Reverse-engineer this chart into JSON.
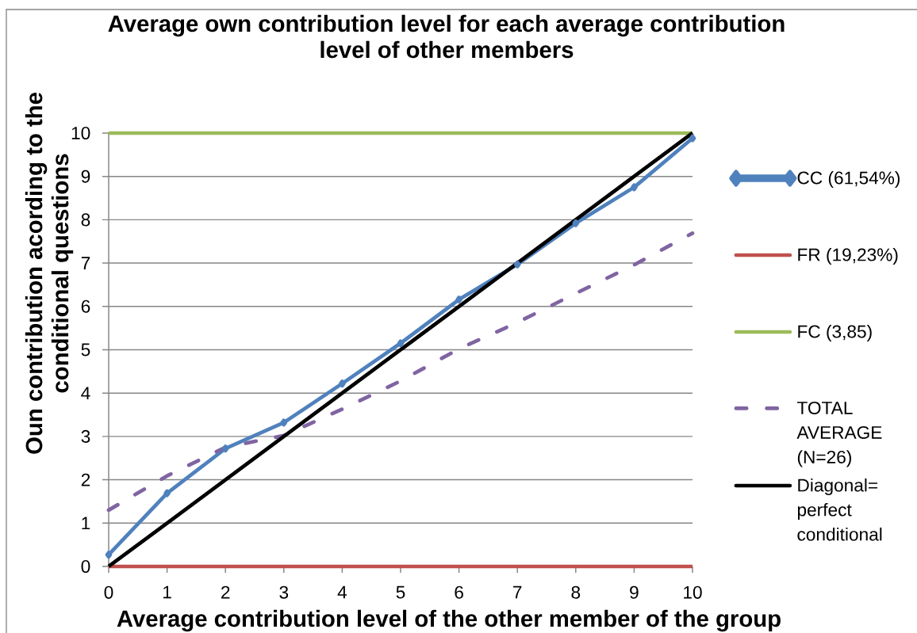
{
  "chart_data": {
    "type": "line",
    "title": "Average own contribution level for each average contribution level of other members",
    "xlabel": "Average contribution level of the other member of the group",
    "ylabel": "Oun contribution acording to the conditional questions",
    "x": [
      0,
      1,
      2,
      3,
      4,
      5,
      6,
      7,
      8,
      9,
      10
    ],
    "xlim": [
      0,
      10
    ],
    "ylim": [
      0,
      10
    ],
    "xticks": [
      0,
      1,
      2,
      3,
      4,
      5,
      6,
      7,
      8,
      9,
      10
    ],
    "yticks": [
      0,
      1,
      2,
      3,
      4,
      5,
      6,
      7,
      8,
      9,
      10
    ],
    "grid": "y",
    "legend": "right",
    "line_style": "solid",
    "series": [
      {
        "name": "CC (61,54%)",
        "color": "#4f81bd",
        "marker": "diamond",
        "values": [
          0.27,
          1.69,
          2.72,
          3.32,
          4.22,
          5.15,
          6.16,
          6.97,
          7.92,
          8.75,
          9.88
        ]
      },
      {
        "name": "FR (19,23%)",
        "color": "#c0504d",
        "values": [
          0,
          0,
          0,
          0,
          0,
          0,
          0,
          0,
          0,
          0,
          0
        ]
      },
      {
        "name": "FC (3,85)",
        "color": "#9bbb59",
        "values": [
          10,
          10,
          10,
          10,
          10,
          10,
          10,
          10,
          10,
          10,
          10
        ]
      },
      {
        "name": "TOTAL AVERAGE (N=26)",
        "color": "#8064a2",
        "line_style": "dashed",
        "values": [
          1.3,
          2.09,
          2.75,
          3.02,
          3.63,
          4.28,
          5.02,
          5.63,
          6.3,
          6.96,
          7.69
        ]
      },
      {
        "name": "Diagonal= perfect conditional",
        "color": "#000000",
        "values": [
          0,
          1,
          2,
          3,
          4,
          5,
          6,
          7,
          8,
          9,
          10
        ]
      }
    ]
  }
}
